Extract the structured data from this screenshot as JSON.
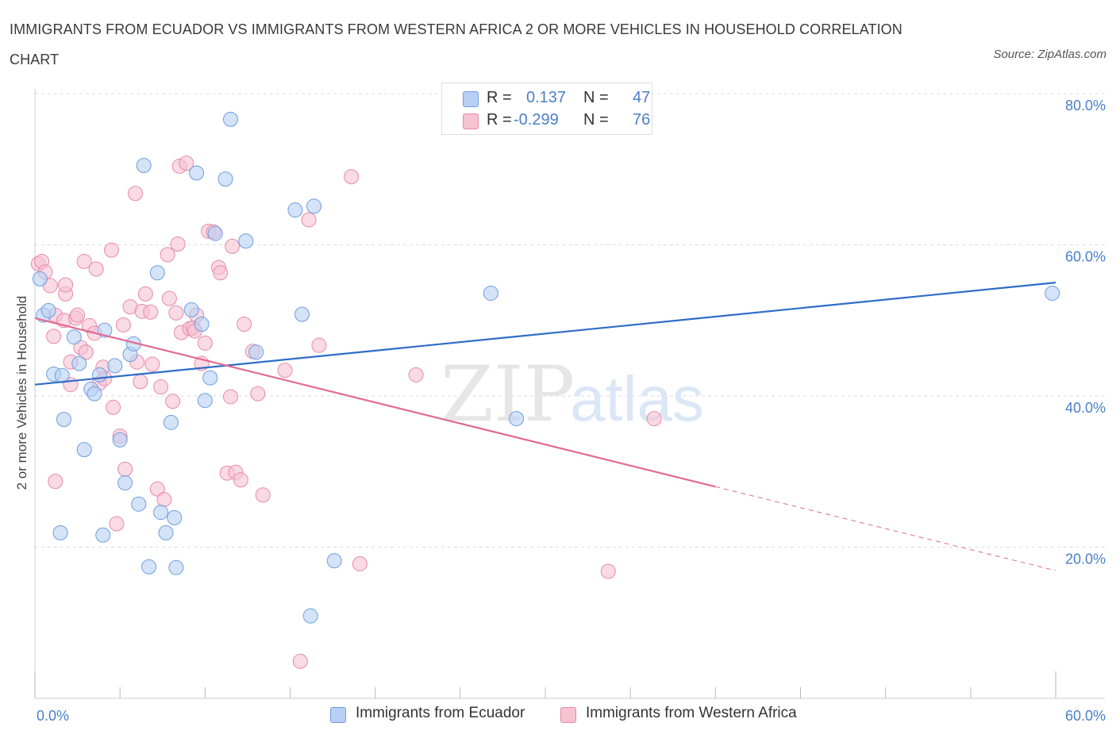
{
  "title": "IMMIGRANTS FROM ECUADOR VS IMMIGRANTS FROM WESTERN AFRICA 2 OR MORE VEHICLES IN HOUSEHOLD CORRELATION CHART",
  "source": "Source: ZipAtlas.com",
  "watermark": {
    "zip": "ZIP",
    "atlas": "atlas"
  },
  "legend": {
    "rows": [
      {
        "r_label": "R =",
        "r_value": "0.137",
        "n_label": "N =",
        "n_value": "47"
      },
      {
        "r_label": "R =",
        "r_value": "-0.299",
        "n_label": "N =",
        "n_value": "76"
      }
    ]
  },
  "colors": {
    "blue_fill": "#b8d0f4",
    "blue_stroke": "#6e9ee0",
    "blue_line": "#2f6cc9",
    "pink_fill": "#f7c2d2",
    "pink_stroke": "#e68aa8",
    "pink_line": "#e06b93",
    "axis_text": "#4a7fc9",
    "grid": "#dddddd"
  },
  "chart_data": {
    "type": "scatter",
    "title": "IMMIGRANTS FROM ECUADOR VS IMMIGRANTS FROM WESTERN AFRICA 2 OR MORE VEHICLES IN HOUSEHOLD CORRELATION CHART",
    "xlabel": "",
    "ylabel": "2 or more Vehicles in Household",
    "xlim": [
      0,
      60
    ],
    "ylim": [
      0,
      82
    ],
    "x_tick_labels": [
      "0.0%",
      "60.0%"
    ],
    "y_ticks": [
      {
        "value": 20,
        "label": "20.0%"
      },
      {
        "value": 40,
        "label": "40.0%"
      },
      {
        "value": 60,
        "label": "60.0%"
      },
      {
        "value": 80,
        "label": "80.0%"
      }
    ],
    "grid": true,
    "legend_position": "top-center",
    "series": [
      {
        "name": "Immigrants from Ecuador",
        "color": "#6e9ee0",
        "points": [
          [
            0.3,
            55.5
          ],
          [
            0.5,
            50.7
          ],
          [
            0.8,
            51.3
          ],
          [
            1.1,
            42.9
          ],
          [
            1.6,
            42.7
          ],
          [
            1.7,
            36.9
          ],
          [
            1.5,
            21.9
          ],
          [
            2.3,
            47.8
          ],
          [
            2.6,
            44.3
          ],
          [
            2.9,
            32.9
          ],
          [
            3.3,
            40.9
          ],
          [
            3.5,
            40.3
          ],
          [
            3.8,
            42.8
          ],
          [
            4.1,
            48.7
          ],
          [
            4.0,
            21.6
          ],
          [
            4.7,
            44.0
          ],
          [
            5.0,
            34.2
          ],
          [
            5.3,
            28.5
          ],
          [
            5.6,
            45.5
          ],
          [
            5.8,
            46.9
          ],
          [
            6.1,
            25.7
          ],
          [
            6.4,
            70.5
          ],
          [
            6.7,
            17.4
          ],
          [
            7.2,
            56.3
          ],
          [
            7.4,
            24.6
          ],
          [
            7.7,
            21.9
          ],
          [
            8.0,
            36.5
          ],
          [
            8.2,
            23.9
          ],
          [
            8.3,
            17.3
          ],
          [
            9.2,
            51.4
          ],
          [
            9.5,
            69.5
          ],
          [
            9.8,
            49.5
          ],
          [
            10.0,
            39.4
          ],
          [
            10.3,
            42.4
          ],
          [
            10.6,
            61.5
          ],
          [
            11.2,
            68.7
          ],
          [
            11.5,
            76.6
          ],
          [
            12.4,
            60.5
          ],
          [
            13.0,
            45.8
          ],
          [
            15.3,
            64.6
          ],
          [
            15.7,
            50.8
          ],
          [
            16.2,
            10.9
          ],
          [
            16.4,
            65.1
          ],
          [
            17.6,
            18.2
          ],
          [
            26.8,
            53.6
          ],
          [
            28.3,
            37.0
          ],
          [
            59.8,
            53.6
          ]
        ],
        "trend": {
          "x": [
            0,
            60
          ],
          "y": [
            41.5,
            55.0
          ]
        }
      },
      {
        "name": "Immigrants from Western Africa",
        "color": "#e68aa8",
        "points": [
          [
            0.2,
            57.5
          ],
          [
            0.4,
            57.8
          ],
          [
            0.6,
            56.4
          ],
          [
            0.9,
            54.6
          ],
          [
            1.2,
            50.7
          ],
          [
            1.1,
            47.9
          ],
          [
            1.2,
            28.7
          ],
          [
            1.7,
            50.0
          ],
          [
            1.8,
            53.5
          ],
          [
            1.8,
            54.7
          ],
          [
            2.1,
            41.5
          ],
          [
            2.1,
            44.5
          ],
          [
            2.4,
            50.3
          ],
          [
            2.5,
            50.7
          ],
          [
            2.7,
            46.4
          ],
          [
            2.9,
            57.8
          ],
          [
            3.0,
            45.8
          ],
          [
            3.2,
            49.3
          ],
          [
            3.5,
            48.3
          ],
          [
            3.6,
            56.8
          ],
          [
            3.8,
            41.7
          ],
          [
            4.0,
            43.8
          ],
          [
            4.1,
            42.3
          ],
          [
            4.5,
            59.3
          ],
          [
            4.6,
            38.5
          ],
          [
            4.8,
            23.1
          ],
          [
            5.0,
            34.7
          ],
          [
            5.2,
            49.4
          ],
          [
            5.3,
            30.3
          ],
          [
            5.6,
            51.8
          ],
          [
            5.9,
            66.8
          ],
          [
            6.0,
            44.5
          ],
          [
            6.2,
            41.9
          ],
          [
            6.3,
            51.2
          ],
          [
            6.5,
            53.5
          ],
          [
            6.8,
            51.1
          ],
          [
            6.9,
            44.2
          ],
          [
            7.2,
            27.7
          ],
          [
            7.4,
            41.2
          ],
          [
            7.6,
            26.3
          ],
          [
            7.8,
            58.7
          ],
          [
            7.9,
            52.9
          ],
          [
            8.1,
            39.3
          ],
          [
            8.3,
            51.0
          ],
          [
            8.4,
            60.1
          ],
          [
            8.5,
            70.4
          ],
          [
            8.6,
            48.4
          ],
          [
            8.9,
            70.8
          ],
          [
            9.1,
            48.9
          ],
          [
            9.3,
            49.0
          ],
          [
            9.4,
            48.6
          ],
          [
            9.5,
            50.7
          ],
          [
            9.8,
            44.3
          ],
          [
            10.0,
            47.0
          ],
          [
            10.2,
            61.8
          ],
          [
            10.5,
            61.7
          ],
          [
            10.8,
            57.0
          ],
          [
            10.9,
            56.3
          ],
          [
            11.3,
            29.8
          ],
          [
            11.5,
            39.9
          ],
          [
            11.6,
            59.8
          ],
          [
            11.8,
            29.9
          ],
          [
            12.1,
            28.9
          ],
          [
            12.3,
            49.5
          ],
          [
            12.8,
            45.9
          ],
          [
            13.1,
            40.3
          ],
          [
            13.4,
            26.9
          ],
          [
            14.7,
            43.4
          ],
          [
            15.6,
            4.9
          ],
          [
            16.1,
            63.3
          ],
          [
            16.7,
            46.7
          ],
          [
            18.6,
            69.0
          ],
          [
            19.1,
            17.8
          ],
          [
            22.4,
            42.8
          ],
          [
            33.7,
            16.8
          ],
          [
            36.4,
            37.0
          ]
        ],
        "trend": {
          "x": [
            0,
            40
          ],
          "y": [
            50.3,
            28.0
          ]
        },
        "trend_extension": {
          "x": [
            40,
            60
          ],
          "y": [
            28.0,
            16.9
          ]
        }
      }
    ]
  },
  "bottom_legend": [
    {
      "label": "Immigrants from Ecuador"
    },
    {
      "label": "Immigrants from Western Africa"
    }
  ]
}
